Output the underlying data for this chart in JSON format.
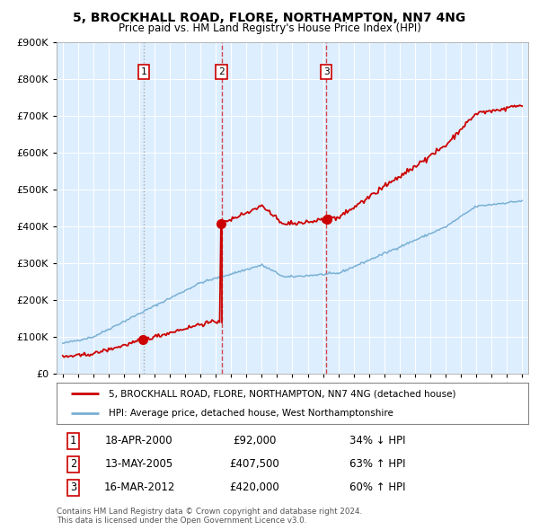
{
  "title": "5, BROCKHALL ROAD, FLORE, NORTHAMPTON, NN7 4NG",
  "subtitle": "Price paid vs. HM Land Registry's House Price Index (HPI)",
  "legend_line1": "5, BROCKHALL ROAD, FLORE, NORTHAMPTON, NN7 4NG (detached house)",
  "legend_line2": "HPI: Average price, detached house, West Northamptonshire",
  "footer1": "Contains HM Land Registry data © Crown copyright and database right 2024.",
  "footer2": "This data is licensed under the Open Government Licence v3.0.",
  "transactions": [
    {
      "num": "1",
      "date": "18-APR-2000",
      "price": "£92,000",
      "pct": "34% ↓ HPI",
      "x_year": 2000.29
    },
    {
      "num": "2",
      "date": "13-MAY-2005",
      "price": "£407,500",
      "pct": "63% ↑ HPI",
      "x_year": 2005.37
    },
    {
      "num": "3",
      "date": "16-MAR-2012",
      "price": "£420,000",
      "pct": "60% ↑ HPI",
      "x_year": 2012.21
    }
  ],
  "red_color": "#cc0000",
  "blue_color": "#7ab0d4",
  "bg_color": "#ddeeff",
  "grid_color": "#ffffff",
  "ylim": [
    0,
    900000
  ],
  "yticks": [
    0,
    100000,
    200000,
    300000,
    400000,
    500000,
    600000,
    700000,
    800000,
    900000
  ],
  "xlim_start": 1994.6,
  "xlim_end": 2025.4
}
